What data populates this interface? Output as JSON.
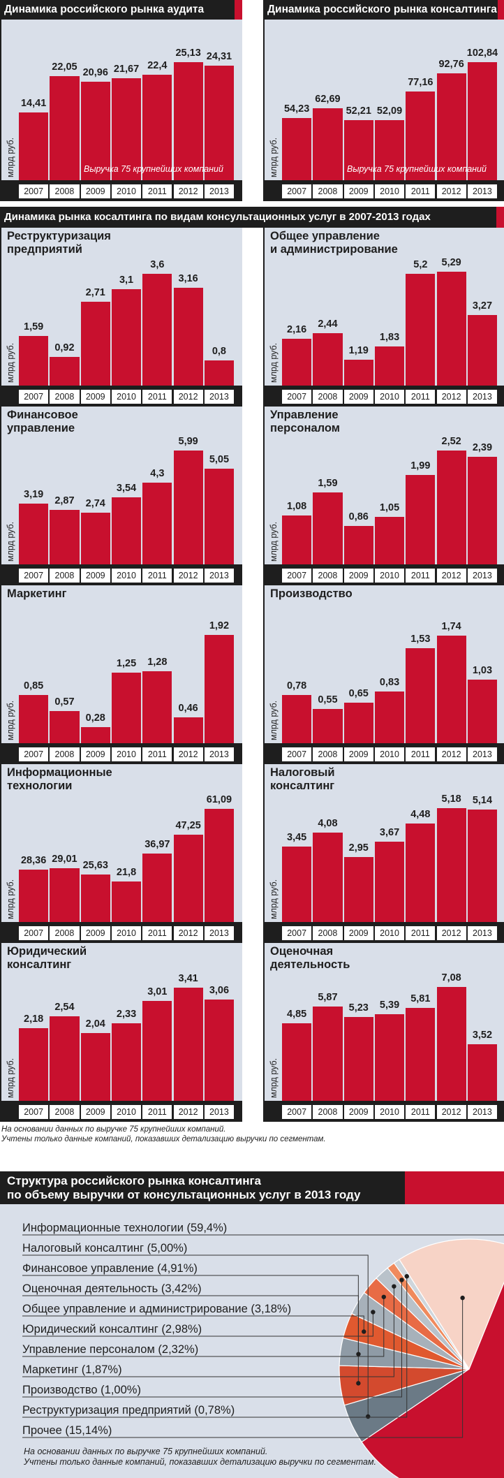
{
  "colors": {
    "bar": "#c8102e",
    "panel": "#d9dfe9",
    "dark": "#1e1e1e",
    "accent": "#c8102e"
  },
  "years": [
    "2007",
    "2008",
    "2009",
    "2010",
    "2011",
    "2012",
    "2013"
  ],
  "unit_label": "млрд руб.",
  "section_title": "Динамика рынка косалтинга по видам консультационных услуг в 2007-2013 годах",
  "footnote_lines": [
    "На основании данных по выручке 75 крупнейших компаний.",
    "Учтены только данные компаний, показавших детализацию выручки по сегментам."
  ],
  "chart_data": [
    {
      "type": "bar",
      "title": "Динамика российского рынка аудита",
      "note": "Выручка 75 крупнейших компаний",
      "categories": [
        "2007",
        "2008",
        "2009",
        "2010",
        "2011",
        "2012",
        "2013"
      ],
      "labels": [
        "14,41",
        "22,05",
        "20,96",
        "21,67",
        "22,4",
        "25,13",
        "24,31"
      ],
      "values": [
        14.41,
        22.05,
        20.96,
        21.67,
        22.4,
        25.13,
        24.31
      ],
      "ylim": [
        0,
        26.4
      ],
      "ylabel": "млрд руб."
    },
    {
      "type": "bar",
      "title": "Динамика российского рынка консалтинга",
      "note": "Выручка 75 крупнейших компаний",
      "categories": [
        "2007",
        "2008",
        "2009",
        "2010",
        "2011",
        "2012",
        "2013"
      ],
      "labels": [
        "54,23",
        "62,69",
        "52,21",
        "52,09",
        "77,16",
        "92,76",
        "102,84"
      ],
      "values": [
        54.23,
        62.69,
        52.21,
        52.09,
        77.16,
        92.76,
        102.84
      ],
      "ylim": [
        0,
        108
      ],
      "ylabel": "млрд руб."
    },
    {
      "type": "bar",
      "title": "Реструктуризация предприятий",
      "title_lines": [
        "Реструктуризация",
        "предприятий"
      ],
      "categories": [
        "2007",
        "2008",
        "2009",
        "2010",
        "2011",
        "2012",
        "2013"
      ],
      "labels": [
        "1,59",
        "0,92",
        "2,71",
        "3,1",
        "3,6",
        "3,16",
        "0,8"
      ],
      "values": [
        1.59,
        0.92,
        2.71,
        3.1,
        3.6,
        3.16,
        0.8
      ],
      "ylim": [
        0,
        3.85
      ],
      "ylabel": "млрд руб."
    },
    {
      "type": "bar",
      "title": "Общее управление и администрирование",
      "title_lines": [
        "Общее управление",
        "и администрирование"
      ],
      "categories": [
        "2007",
        "2008",
        "2009",
        "2010",
        "2011",
        "2012",
        "2013"
      ],
      "labels": [
        "2,16",
        "2,44",
        "1,19",
        "1,83",
        "5,2",
        "5,29",
        "3,27"
      ],
      "values": [
        2.16,
        2.44,
        1.19,
        1.83,
        5.2,
        5.29,
        3.27
      ],
      "ylim": [
        0,
        5.55
      ],
      "ylabel": "млрд руб."
    },
    {
      "type": "bar",
      "title": "Финансовое управление",
      "title_lines": [
        "Финансовое",
        "управление"
      ],
      "categories": [
        "2007",
        "2008",
        "2009",
        "2010",
        "2011",
        "2012",
        "2013"
      ],
      "labels": [
        "3,19",
        "2,87",
        "2,74",
        "3,54",
        "4,3",
        "5,99",
        "5,05"
      ],
      "values": [
        3.19,
        2.87,
        2.74,
        3.54,
        4.3,
        5.99,
        5.05
      ],
      "ylim": [
        0,
        6.3
      ],
      "ylabel": "млрд руб."
    },
    {
      "type": "bar",
      "title": "Управление персоналом",
      "title_lines": [
        "Управление",
        "персоналом"
      ],
      "categories": [
        "2007",
        "2008",
        "2009",
        "2010",
        "2011",
        "2012",
        "2013"
      ],
      "labels": [
        "1,08",
        "1,59",
        "0,86",
        "1,05",
        "1,99",
        "2,52",
        "2,39"
      ],
      "values": [
        1.08,
        1.59,
        0.86,
        1.05,
        1.99,
        2.52,
        2.39
      ],
      "ylim": [
        0,
        2.65
      ],
      "ylabel": "млрд руб."
    },
    {
      "type": "bar",
      "title": "Маркетинг",
      "title_lines": [
        "Маркетинг"
      ],
      "categories": [
        "2007",
        "2008",
        "2009",
        "2010",
        "2011",
        "2012",
        "2013"
      ],
      "labels": [
        "0,85",
        "0,57",
        "0,28",
        "1,25",
        "1,28",
        "0,46",
        "1,92"
      ],
      "values": [
        0.85,
        0.57,
        0.28,
        1.25,
        1.28,
        0.46,
        1.92
      ],
      "ylim": [
        0,
        2.12
      ],
      "ylabel": "млрд руб."
    },
    {
      "type": "bar",
      "title": "Производство",
      "title_lines": [
        "Производство"
      ],
      "categories": [
        "2007",
        "2008",
        "2009",
        "2010",
        "2011",
        "2012",
        "2013"
      ],
      "labels": [
        "0,78",
        "0,55",
        "0,65",
        "0,83",
        "1,53",
        "1,74",
        "1,03"
      ],
      "values": [
        0.78,
        0.55,
        0.65,
        0.83,
        1.53,
        1.74,
        1.03
      ],
      "ylim": [
        0,
        1.93
      ],
      "ylabel": "млрд руб."
    },
    {
      "type": "bar",
      "title": "Информационные технологии",
      "title_lines": [
        "Информационные",
        "технологии"
      ],
      "categories": [
        "2007",
        "2008",
        "2009",
        "2010",
        "2011",
        "2012",
        "2013"
      ],
      "labels": [
        "28,36",
        "29,01",
        "25,63",
        "21,8",
        "36,97",
        "47,25",
        "61,09"
      ],
      "values": [
        28.36,
        29.01,
        25.63,
        21.8,
        36.97,
        47.25,
        61.09
      ],
      "ylim": [
        0,
        64.5
      ],
      "ylabel": "млрд руб."
    },
    {
      "type": "bar",
      "title": "Налоговый консалтинг",
      "title_lines": [
        "Налоговый",
        "консалтинг"
      ],
      "categories": [
        "2007",
        "2008",
        "2009",
        "2010",
        "2011",
        "2012",
        "2013"
      ],
      "labels": [
        "3,45",
        "4,08",
        "2,95",
        "3,67",
        "4,48",
        "5,18",
        "5,14"
      ],
      "values": [
        3.45,
        4.08,
        2.95,
        3.67,
        4.48,
        5.18,
        5.14
      ],
      "ylim": [
        0,
        5.45
      ],
      "ylabel": "млрд руб."
    },
    {
      "type": "bar",
      "title": "Юридический консалтинг",
      "title_lines": [
        "Юридический",
        "консалтинг"
      ],
      "categories": [
        "2007",
        "2008",
        "2009",
        "2010",
        "2011",
        "2012",
        "2013"
      ],
      "labels": [
        "2,18",
        "2,54",
        "2,04",
        "2,33",
        "3,01",
        "3,41",
        "3,06"
      ],
      "values": [
        2.18,
        2.54,
        2.04,
        2.33,
        3.01,
        3.41,
        3.06
      ],
      "ylim": [
        0,
        3.6
      ],
      "ylabel": "млрд руб."
    },
    {
      "type": "bar",
      "title": "Оценочная деятельность",
      "title_lines": [
        "Оценочная",
        "деятельность"
      ],
      "categories": [
        "2007",
        "2008",
        "2009",
        "2010",
        "2011",
        "2012",
        "2013"
      ],
      "labels": [
        "4,85",
        "5,87",
        "5,23",
        "5,39",
        "5,81",
        "7,08",
        "3,52"
      ],
      "values": [
        4.85,
        5.87,
        5.23,
        5.39,
        5.81,
        7.08,
        3.52
      ],
      "ylim": [
        0,
        7.45
      ],
      "ylabel": "млрд руб."
    },
    {
      "type": "pie",
      "title_lines": [
        "Структура российского рынка консалтинга",
        "по объему выручки от консультационных услуг в 2013 году"
      ],
      "labels": [
        "Информационные технологии (59,4%)",
        "Налоговый консалтинг (5,00%)",
        "Финансовое управление (4,91%)",
        "Оценочная деятельность (3,42%)",
        "Общее управление и администрирование (3,18%)",
        "Юридический консалтинг (2,98%)",
        "Управление персоналом (2,32%)",
        "Маркетинг (1,87%)",
        "Производство (1,00%)",
        "Реструктуризация предприятий (0,78%)",
        "Прочее (15,14%)"
      ],
      "values": [
        59.4,
        5.0,
        4.91,
        3.42,
        3.18,
        2.98,
        2.32,
        1.87,
        1.0,
        0.78,
        15.14
      ],
      "slice_colors": [
        "#c8102e",
        "#6b7a86",
        "#d34a2e",
        "#8f9ba6",
        "#e0592f",
        "#a7b1ba",
        "#e86b45",
        "#b9c2ca",
        "#f08a5d",
        "#cfd6dc",
        "#f7d3c6"
      ],
      "note_lines": [
        "На основании данных по выручке 75 крупнейших компаний.",
        "Учтены только данные компаний, показавших детализацию выручки по сегментам."
      ]
    }
  ]
}
